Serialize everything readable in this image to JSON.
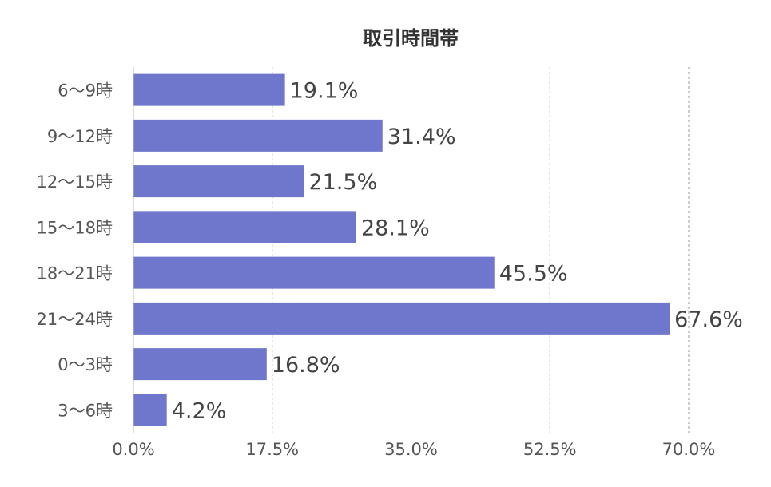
{
  "chart_data": {
    "type": "bar",
    "orientation": "horizontal",
    "title": "取引時間帯",
    "xlabel": "",
    "ylabel": "",
    "categories": [
      "6〜9時",
      "9〜12時",
      "12〜15時",
      "15〜18時",
      "18〜21時",
      "21〜24時",
      "0〜3時",
      "3〜6時"
    ],
    "values": [
      19.1,
      31.4,
      21.5,
      28.1,
      45.5,
      67.6,
      16.8,
      4.2
    ],
    "value_labels": [
      "19.1%",
      "31.4%",
      "21.5%",
      "28.1%",
      "45.5%",
      "67.6%",
      "16.8%",
      "4.2%"
    ],
    "xlim": [
      0,
      70
    ],
    "x_ticks": [
      0,
      17.5,
      35,
      52.5,
      70
    ],
    "x_tick_labels": [
      "0.0%",
      "17.5%",
      "35.0%",
      "52.5%",
      "70.0%"
    ],
    "grid": true,
    "legend": "none",
    "bar_color": "#6f77cc"
  }
}
